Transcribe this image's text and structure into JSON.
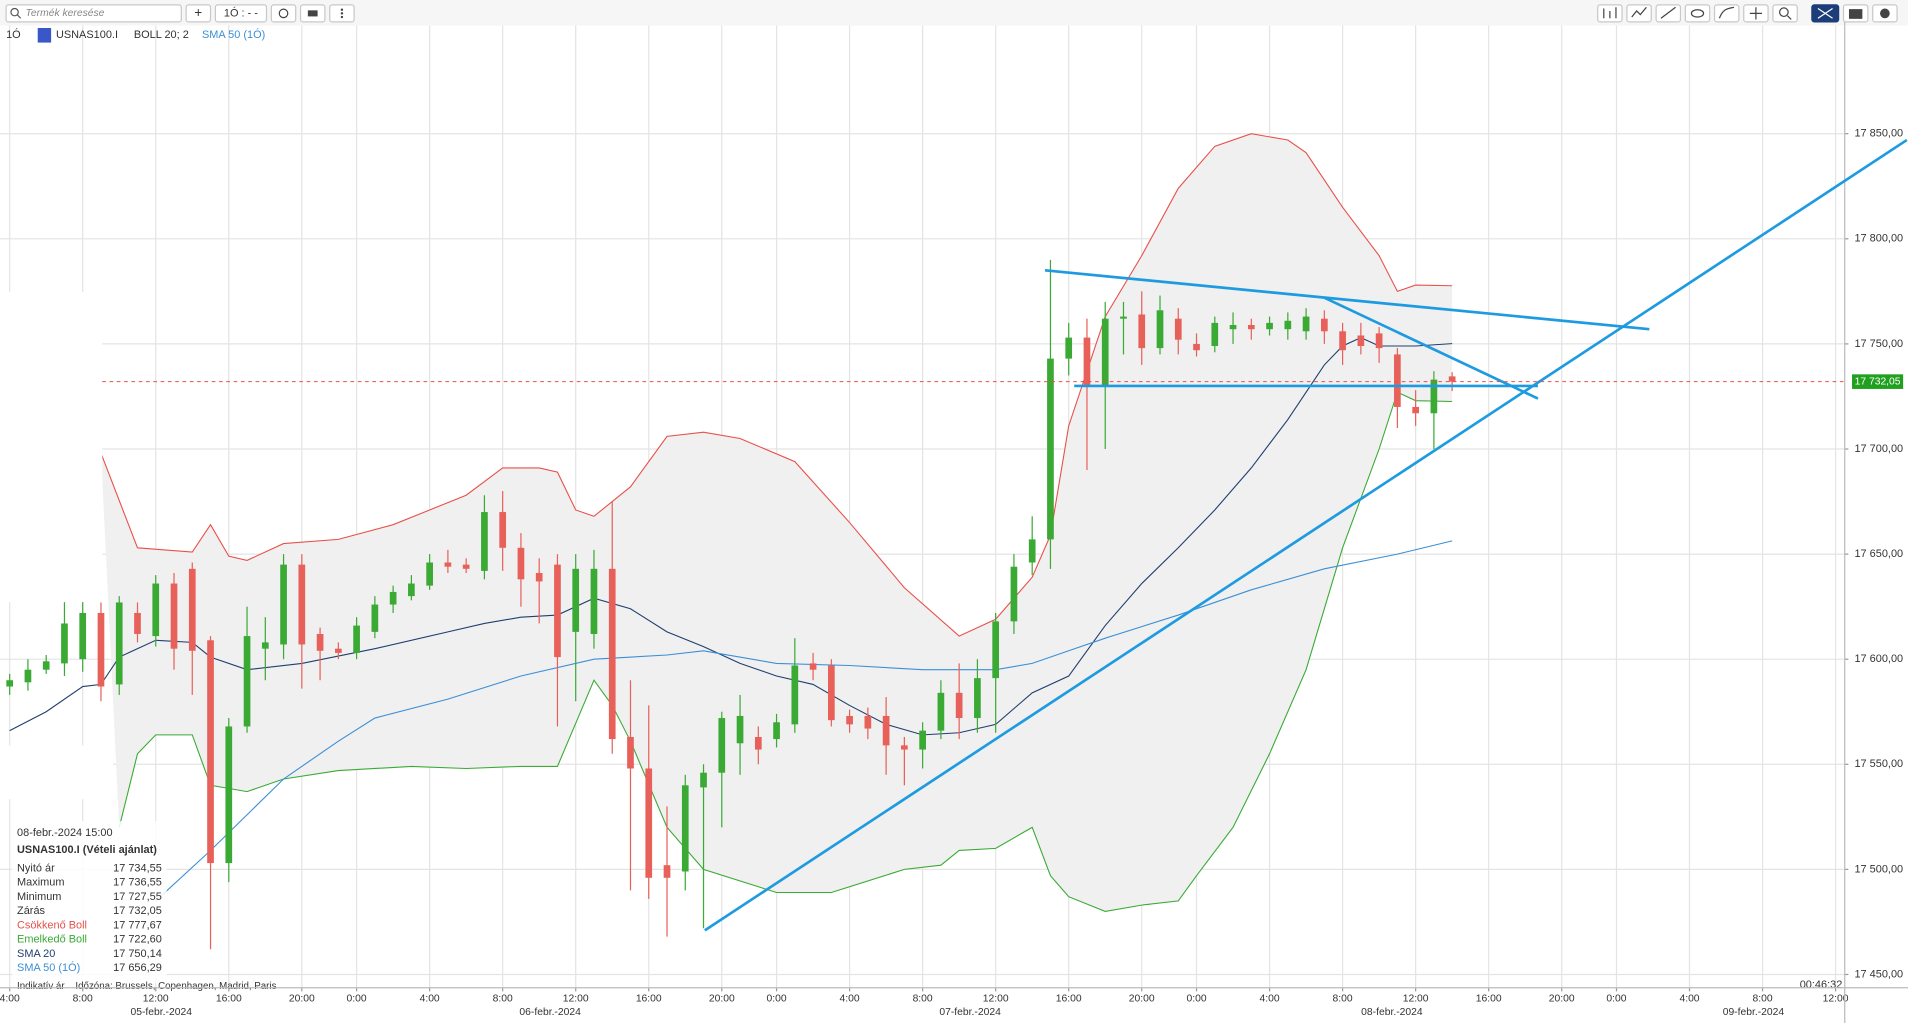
{
  "toolbar": {
    "search_placeholder": "Termék keresése",
    "add_button": "+",
    "interval_button": "1Ó : - -"
  },
  "header": {
    "interval": "1Ó",
    "bollinger_label": "BOLL 20; 2"
  },
  "footer": {
    "price_type": "Indikatív ár",
    "timezone": "Időzóna: Brussels, Copenhagen, Madrid, Paris",
    "clock": "00:46:32"
  },
  "tooltip": {
    "time": "08-febr.-2024 15:00",
    "symbol": "USNAS100.I (Vételi ajánlat)",
    "rows": [
      {
        "label": "Nyitó ár",
        "value": "17 734,55"
      },
      {
        "label": "Maximum",
        "value": "17 736,55"
      },
      {
        "label": "Minimum",
        "value": "17 727,55"
      },
      {
        "label": "Zárás",
        "value": "17 732,05"
      }
    ]
  },
  "chart_data": {
    "type": "candlestick",
    "title": "USNAS100.I",
    "up_color": "#3aaa35",
    "down_color": "#e8605a",
    "grid": true,
    "xlim": [
      -4.53,
      96.5
    ],
    "ylim": [
      17443.7,
      17903.2
    ],
    "xticks": [
      {
        "value": -4,
        "label": "4:00"
      },
      {
        "value": 0,
        "label": "8:00"
      },
      {
        "value": 4,
        "label": "12:00"
      },
      {
        "value": 8,
        "label": "16:00"
      },
      {
        "value": 12,
        "label": "20:00"
      },
      {
        "value": 15,
        "label": "0:00"
      },
      {
        "value": 19,
        "label": "4:00"
      },
      {
        "value": 23,
        "label": "8:00"
      },
      {
        "value": 27,
        "label": "12:00"
      },
      {
        "value": 31,
        "label": "16:00"
      },
      {
        "value": 35,
        "label": "20:00"
      },
      {
        "value": 38,
        "label": "0:00"
      },
      {
        "value": 42,
        "label": "4:00"
      },
      {
        "value": 46,
        "label": "8:00"
      },
      {
        "value": 50,
        "label": "12:00"
      },
      {
        "value": 54,
        "label": "16:00"
      },
      {
        "value": 58,
        "label": "20:00"
      },
      {
        "value": 61,
        "label": "0:00"
      },
      {
        "value": 65,
        "label": "4:00"
      },
      {
        "value": 69,
        "label": "8:00"
      },
      {
        "value": 73,
        "label": "12:00"
      },
      {
        "value": 77,
        "label": "16:00"
      },
      {
        "value": 81,
        "label": "20:00"
      },
      {
        "value": 84,
        "label": "0:00"
      },
      {
        "value": 88,
        "label": "4:00"
      },
      {
        "value": 92,
        "label": "8:00"
      },
      {
        "value": 96,
        "label": "12:00"
      }
    ],
    "date_ticks": [
      {
        "value": 4.3,
        "label": "05-febr.-2024"
      },
      {
        "value": 25.6,
        "label": "06-febr.-2024"
      },
      {
        "value": 48.6,
        "label": "07-febr.-2024"
      },
      {
        "value": 71.7,
        "label": "08-febr.-2024"
      },
      {
        "value": 91.5,
        "label": "09-febr.-2024"
      }
    ],
    "yticks": [
      {
        "value": 17450,
        "label": "17 450,00"
      },
      {
        "value": 17500,
        "label": "17 500,00"
      },
      {
        "value": 17550,
        "label": "17 550,00"
      },
      {
        "value": 17600,
        "label": "17 600,00"
      },
      {
        "value": 17650,
        "label": "17 650,00"
      },
      {
        "value": 17700,
        "label": "17 700,00"
      },
      {
        "value": 17750,
        "label": "17 750,00"
      },
      {
        "value": 17800,
        "label": "17 800,00"
      },
      {
        "value": 17850,
        "label": "17 850,00"
      }
    ],
    "x": [
      -4,
      -3,
      -2,
      -1,
      0,
      1,
      2,
      3,
      4,
      5,
      6,
      7,
      8,
      9,
      10,
      11,
      12,
      13,
      14,
      15,
      16,
      17,
      18,
      19,
      20,
      21,
      22,
      23,
      24,
      25,
      26,
      27,
      28,
      29,
      30,
      31,
      32,
      33,
      34,
      35,
      36,
      37,
      38,
      39,
      40,
      41,
      42,
      43,
      44,
      45,
      46,
      47,
      48,
      49,
      50,
      51,
      52,
      53,
      54,
      55,
      56,
      57,
      58,
      59,
      60,
      61,
      62,
      63,
      64,
      65,
      66,
      67,
      68,
      69,
      70,
      71,
      72,
      73,
      74,
      75
    ],
    "open": [
      17587,
      17589,
      17595,
      17598,
      17600,
      17622,
      17588,
      17622,
      17611,
      17636,
      17643,
      17609,
      17503,
      17568,
      17605,
      17607,
      17645,
      17612,
      17605,
      17603,
      17613,
      17626,
      17630,
      17635,
      17646,
      17645,
      17642,
      17670,
      17653,
      17641,
      17645,
      17613,
      17612,
      17643,
      17563,
      17548,
      17502,
      17499,
      17539,
      17546,
      17560,
      17563,
      17562,
      17569,
      17598,
      17597,
      17573,
      17573,
      17573,
      17559,
      17557,
      17566,
      17584,
      17572,
      17591,
      17618,
      17646,
      17657,
      17743,
      17753,
      17730,
      17762,
      17764,
      17748,
      17762,
      17750,
      17749,
      17757,
      17759,
      17757,
      17757,
      17756,
      17762,
      17756,
      17754,
      17755,
      17745,
      17720,
      17717,
      17734.55
    ],
    "high": [
      17593,
      17600,
      17602,
      17630,
      17628,
      17627,
      17630,
      17627,
      17640,
      17641,
      17646,
      17611,
      17572,
      17625,
      17620,
      17650,
      17650,
      17615,
      17608,
      17620,
      17630,
      17635,
      17640,
      17650,
      17652,
      17648,
      17678,
      17680,
      17660,
      17648,
      17650,
      17650,
      17652,
      17675,
      17590,
      17578,
      17530,
      17545,
      17550,
      17575,
      17583,
      17568,
      17574,
      17610,
      17603,
      17600,
      17576,
      17577,
      17582,
      17563,
      17570,
      17590,
      17598,
      17600,
      17622,
      17650,
      17668,
      17790,
      17760,
      17762,
      17770,
      17770,
      17775,
      17773,
      17767,
      17755,
      17763,
      17765,
      17762,
      17763,
      17765,
      17767,
      17766,
      17760,
      17760,
      17758,
      17748,
      17728,
      17737,
      17736.55
    ],
    "low": [
      17583,
      17585,
      17593,
      17592,
      17594,
      17580,
      17583,
      17608,
      17606,
      17595,
      17583,
      17462,
      17494,
      17565,
      17590,
      17600,
      17586,
      17590,
      17600,
      17600,
      17610,
      17622,
      17628,
      17633,
      17641,
      17641,
      17638,
      17642,
      17625,
      17617,
      17568,
      17580,
      17605,
      17555,
      17490,
      17486,
      17468,
      17490,
      17472,
      17520,
      17545,
      17550,
      17558,
      17565,
      17590,
      17568,
      17565,
      17562,
      17545,
      17540,
      17548,
      17562,
      17562,
      17565,
      17565,
      17612,
      17640,
      17643,
      17735,
      17690,
      17700,
      17745,
      17740,
      17745,
      17745,
      17744,
      17746,
      17750,
      17752,
      17754,
      17752,
      17752,
      17750,
      17740,
      17745,
      17741,
      17710,
      17711,
      17700,
      17727.55
    ],
    "close": [
      17590,
      17595,
      17599,
      17617,
      17622,
      17587,
      17627,
      17612,
      17636,
      17605,
      17604,
      17503,
      17568,
      17611,
      17608,
      17645,
      17607,
      17604,
      17603,
      17616,
      17626,
      17632,
      17636,
      17646,
      17644,
      17643,
      17670,
      17653,
      17638,
      17637,
      17601,
      17643,
      17643,
      17562,
      17548,
      17496,
      17496,
      17540,
      17546,
      17572,
      17573,
      17557,
      17570,
      17597,
      17595,
      17571,
      17569,
      17567,
      17559,
      17557,
      17566,
      17584,
      17572,
      17591,
      17618,
      17644,
      17657,
      17743,
      17753,
      17730,
      17762,
      17763,
      17748,
      17766,
      17752,
      17747,
      17760,
      17759,
      17757,
      17760,
      17761,
      17763,
      17756,
      17747,
      17749,
      17748,
      17720,
      17717,
      17733,
      17732.05
    ],
    "indicators": [
      {
        "name": "Csökkenő Boll",
        "color": "#e8504a",
        "last_label": "17 777,67",
        "x": [
          1,
          3,
          6,
          7,
          8,
          9,
          11,
          14,
          17,
          19,
          21,
          23,
          25,
          26,
          27,
          28,
          30,
          32,
          34,
          36,
          39,
          42,
          45,
          48,
          50,
          52,
          53,
          54,
          56,
          58,
          60,
          62,
          64,
          66,
          67,
          69,
          71,
          72,
          73,
          75
        ],
        "values": [
          17698,
          17653,
          17651,
          17664,
          17649,
          17647,
          17655,
          17657,
          17664,
          17671,
          17678,
          17691,
          17691,
          17689,
          17671,
          17668,
          17682,
          17706,
          17708,
          17705,
          17694,
          17665,
          17634,
          17611,
          17619,
          17639,
          17659,
          17711,
          17763,
          17792,
          17824,
          17844,
          17850,
          17847,
          17841,
          17815,
          17792,
          17775,
          17778,
          17777.67
        ]
      },
      {
        "name": "Emelkedő Boll",
        "color": "#3aaa35",
        "last_label": "17 722,60",
        "x": [
          2,
          3,
          4,
          6,
          7,
          9,
          11,
          14,
          18,
          21,
          24,
          26,
          28,
          29,
          30,
          32,
          34,
          38,
          41,
          45,
          47,
          48,
          50,
          52,
          53,
          54,
          56,
          58,
          60,
          61,
          63,
          65,
          67,
          69,
          71,
          72,
          73,
          75
        ],
        "values": [
          17520,
          17555,
          17564,
          17564,
          17540,
          17537,
          17543,
          17547,
          17549,
          17548,
          17549,
          17549,
          17590,
          17578,
          17561,
          17520,
          17500,
          17489,
          17489,
          17500,
          17502,
          17509,
          17510,
          17520,
          17497,
          17487,
          17480,
          17483,
          17485,
          17497,
          17520,
          17555,
          17595,
          17653,
          17700,
          17727,
          17723,
          17722.6
        ]
      },
      {
        "name": "SMA 20",
        "color": "#1f3f6e",
        "last_label": "17 750,14",
        "x": [
          -4,
          -2,
          0,
          1,
          2,
          4,
          6,
          7,
          9,
          12,
          16,
          20,
          22,
          24,
          26,
          28,
          30,
          32,
          34,
          36,
          38,
          40,
          42,
          44,
          46,
          48,
          50,
          52,
          54,
          56,
          58,
          60,
          62,
          64,
          66,
          68,
          69,
          70,
          71,
          73,
          75
        ],
        "values": [
          17566,
          17575,
          17587,
          17588,
          17601,
          17609,
          17608,
          17601,
          17595,
          17598,
          17605,
          17613,
          17617,
          17620,
          17621,
          17629,
          17624,
          17613,
          17606,
          17598,
          17592,
          17588,
          17578,
          17569,
          17564,
          17565,
          17569,
          17584,
          17592,
          17616,
          17636,
          17653,
          17671,
          17691,
          17714,
          17740,
          17749,
          17753,
          17749,
          17749,
          17750.14
        ]
      },
      {
        "name": "SMA 50 (1Ó)",
        "color": "#3b8fd6",
        "last_label": "17 656,29",
        "x": [
          4,
          7,
          11,
          14,
          16,
          20,
          24,
          28,
          32,
          34,
          38,
          42,
          46,
          50,
          52,
          54,
          56,
          60,
          64,
          68,
          72,
          75
        ],
        "values": [
          17485,
          17509,
          17543,
          17561,
          17572,
          17581,
          17592,
          17600,
          17602,
          17604,
          17598,
          17597,
          17595,
          17595,
          17598,
          17604,
          17610,
          17621,
          17633,
          17643,
          17650,
          17656.29
        ]
      }
    ],
    "trendline_color": "#1e9be0",
    "trendlines": [
      {
        "x": [
          34.07,
          99.9
        ],
        "y": [
          17471,
          17847
        ]
      },
      {
        "x": [
          52.7,
          85.8
        ],
        "y": [
          17785,
          17757
        ]
      },
      {
        "x": [
          68,
          79.7
        ],
        "y": [
          17772,
          17724
        ]
      },
      {
        "x": [
          54.3,
          79.7
        ],
        "y": [
          17730,
          17730
        ]
      }
    ],
    "last_price": {
      "value": 17732.05,
      "label": "17 732,05",
      "color": "#e8504a",
      "tag_color": "#1fa01f"
    }
  }
}
